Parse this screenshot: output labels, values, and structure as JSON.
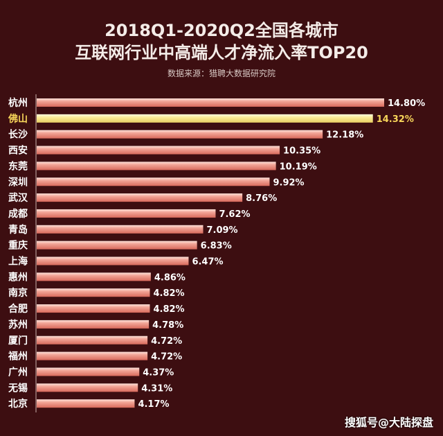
{
  "chart_data": {
    "type": "bar",
    "orientation": "horizontal",
    "title": "2018Q1-2020Q2全国各城市\n互联网行业中高端人才净流入率TOP20",
    "title_lines": [
      "2018Q1-2020Q2全国各城市",
      "互联网行业中高端人才净流入率TOP20"
    ],
    "subtitle": "数据来源：猎聘大数据研究院",
    "categories": [
      "杭州",
      "佛山",
      "长沙",
      "西安",
      "东莞",
      "深圳",
      "武汉",
      "成都",
      "青岛",
      "重庆",
      "上海",
      "惠州",
      "南京",
      "合肥",
      "苏州",
      "厦门",
      "福州",
      "广州",
      "无锡",
      "北京"
    ],
    "values": [
      14.8,
      14.32,
      12.18,
      10.35,
      10.19,
      9.92,
      8.76,
      7.62,
      7.09,
      6.83,
      6.47,
      4.86,
      4.82,
      4.82,
      4.78,
      4.72,
      4.72,
      4.37,
      4.31,
      4.17
    ],
    "value_labels": [
      "14.80%",
      "14.32%",
      "12.18%",
      "10.35%",
      "10.19%",
      "9.92%",
      "8.76%",
      "7.62%",
      "7.09%",
      "6.83%",
      "6.47%",
      "4.86%",
      "4.82%",
      "4.82%",
      "4.78%",
      "4.72%",
      "4.72%",
      "4.37%",
      "4.31%",
      "4.17%"
    ],
    "highlight": "佛山",
    "xlim": [
      0,
      15.5
    ],
    "grid": false,
    "colors": {
      "background": "#3d0e11",
      "bar": "#e8867a",
      "bar_light": "#fbd8d0",
      "highlight_bar": "#fbeb95",
      "highlight_text": "#f7d55a",
      "text": "#ffffff"
    }
  },
  "watermark": "搜狐号@大陆探盘"
}
